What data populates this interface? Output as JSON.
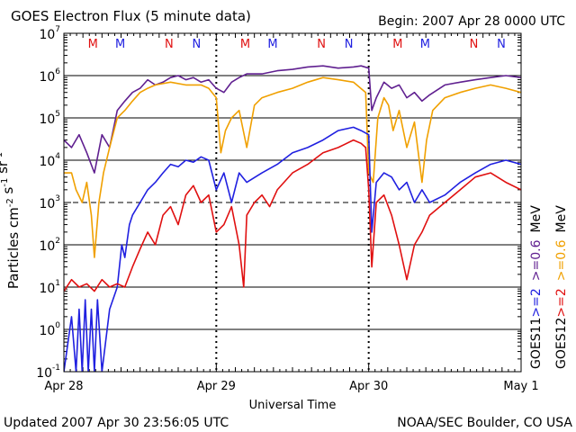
{
  "header": {
    "title": "GOES Electron Flux (5 minute data)",
    "begin": "Begin: 2007 Apr 28 0000 UTC"
  },
  "footer": {
    "updated": "Updated 2007 Apr 30 23:56:05 UTC",
    "source": "NOAA/SEC Boulder, CO USA"
  },
  "colors": {
    "goes11_2mev": "#2020e0",
    "goes11_06mev": "#602090",
    "goes12_2mev": "#e01010",
    "goes12_06mev": "#f0a000",
    "marker_m": "#e01010",
    "marker_n": "#2020e0"
  },
  "chart_data": {
    "type": "line",
    "title": "GOES Electron Flux (5 minute data)",
    "xlabel": "Universal Time",
    "ylabel": "Particles cm^-2 s^-1 sr^-1",
    "yscale": "log",
    "ylim": [
      0.1,
      10000000
    ],
    "xlim": [
      0,
      3
    ],
    "x_unit": "days since 2007 Apr 28 0000 UTC",
    "y_ticks": [
      {
        "base": "10",
        "exp": "7"
      },
      {
        "base": "10",
        "exp": "6"
      },
      {
        "base": "10",
        "exp": "5"
      },
      {
        "base": "10",
        "exp": "4"
      },
      {
        "base": "10",
        "exp": "3"
      },
      {
        "base": "10",
        "exp": "2"
      },
      {
        "base": "10",
        "exp": "1"
      },
      {
        "base": "10",
        "exp": "0"
      },
      {
        "base": "10",
        "exp": "-1"
      }
    ],
    "x_ticks": [
      {
        "label": "Apr 28",
        "x": 0
      },
      {
        "label": "Apr 29",
        "x": 1
      },
      {
        "label": "Apr 30",
        "x": 2
      },
      {
        "label": "May 1",
        "x": 3
      }
    ],
    "dashed_levels": [
      1000
    ],
    "day_boundaries": [
      1,
      2
    ],
    "markers": [
      {
        "label": "M",
        "x": 0.19,
        "color": "#e01010"
      },
      {
        "label": "M",
        "x": 0.37,
        "color": "#2020e0"
      },
      {
        "label": "N",
        "x": 0.69,
        "color": "#e01010"
      },
      {
        "label": "N",
        "x": 0.87,
        "color": "#2020e0"
      },
      {
        "label": "M",
        "x": 1.19,
        "color": "#e01010"
      },
      {
        "label": "M",
        "x": 1.37,
        "color": "#2020e0"
      },
      {
        "label": "N",
        "x": 1.69,
        "color": "#e01010"
      },
      {
        "label": "N",
        "x": 1.87,
        "color": "#2020e0"
      },
      {
        "label": "M",
        "x": 2.19,
        "color": "#e01010"
      },
      {
        "label": "M",
        "x": 2.37,
        "color": "#2020e0"
      },
      {
        "label": "N",
        "x": 2.69,
        "color": "#e01010"
      },
      {
        "label": "N",
        "x": 2.87,
        "color": "#2020e0"
      }
    ],
    "legend": {
      "position": "right",
      "goes11_label": "GOES11",
      "goes12_label": "GOES12",
      "goes11_items": [
        {
          "label": ">=2",
          "color": "#2020e0"
        },
        {
          "label": ">=0.6",
          "color": "#602090"
        },
        {
          "label": "MeV",
          "color": "#000000"
        }
      ],
      "goes12_items": [
        {
          "label": ">=2",
          "color": "#e01010"
        },
        {
          "label": ">=0.6",
          "color": "#f0a000"
        },
        {
          "label": "MeV",
          "color": "#000000"
        }
      ]
    },
    "series": [
      {
        "name": "GOES11 >=0.6 MeV",
        "color": "#602090",
        "x": [
          0,
          0.05,
          0.1,
          0.15,
          0.2,
          0.25,
          0.3,
          0.35,
          0.4,
          0.45,
          0.5,
          0.55,
          0.6,
          0.65,
          0.7,
          0.75,
          0.8,
          0.85,
          0.9,
          0.95,
          1.0,
          1.05,
          1.1,
          1.15,
          1.2,
          1.3,
          1.4,
          1.5,
          1.6,
          1.7,
          1.8,
          1.9,
          1.95,
          2.0,
          2.02,
          2.05,
          2.1,
          2.15,
          2.2,
          2.25,
          2.3,
          2.35,
          2.4,
          2.5,
          2.6,
          2.7,
          2.8,
          2.9,
          3.0
        ],
        "y": [
          30000,
          20000,
          40000,
          15000,
          5000,
          40000,
          20000,
          150000,
          250000,
          400000,
          500000,
          800000,
          600000,
          700000,
          900000,
          1000000,
          800000,
          900000,
          700000,
          800000,
          500000,
          400000,
          700000,
          900000,
          1100000,
          1100000,
          1300000,
          1400000,
          1600000,
          1700000,
          1500000,
          1600000,
          1700000,
          1500000,
          150000,
          300000,
          700000,
          500000,
          600000,
          300000,
          400000,
          250000,
          350000,
          600000,
          700000,
          800000,
          900000,
          1000000,
          900000
        ]
      },
      {
        "name": "GOES12 >=0.6 MeV",
        "color": "#f0a000",
        "x": [
          0,
          0.05,
          0.08,
          0.12,
          0.15,
          0.18,
          0.2,
          0.23,
          0.26,
          0.3,
          0.35,
          0.4,
          0.45,
          0.5,
          0.55,
          0.6,
          0.7,
          0.8,
          0.9,
          0.95,
          1.0,
          1.03,
          1.06,
          1.1,
          1.15,
          1.2,
          1.25,
          1.3,
          1.4,
          1.5,
          1.6,
          1.7,
          1.8,
          1.9,
          1.98,
          2.0,
          2.03,
          2.06,
          2.1,
          2.13,
          2.16,
          2.2,
          2.25,
          2.3,
          2.35,
          2.38,
          2.42,
          2.5,
          2.6,
          2.7,
          2.8,
          2.9,
          3.0
        ],
        "y": [
          5000,
          5000,
          2000,
          1000,
          3000,
          500,
          50,
          1000,
          5000,
          20000,
          100000,
          150000,
          250000,
          400000,
          500000,
          600000,
          700000,
          600000,
          600000,
          500000,
          300000,
          15000,
          50000,
          100000,
          150000,
          20000,
          200000,
          300000,
          400000,
          500000,
          700000,
          900000,
          800000,
          700000,
          400000,
          5000,
          3000,
          100000,
          300000,
          200000,
          50000,
          150000,
          20000,
          80000,
          3000,
          30000,
          150000,
          300000,
          400000,
          500000,
          600000,
          500000,
          400000
        ]
      },
      {
        "name": "GOES11 >=2 MeV",
        "color": "#2020e0",
        "x": [
          0,
          0.05,
          0.08,
          0.1,
          0.12,
          0.14,
          0.16,
          0.18,
          0.2,
          0.22,
          0.25,
          0.3,
          0.35,
          0.38,
          0.4,
          0.43,
          0.45,
          0.5,
          0.55,
          0.6,
          0.65,
          0.7,
          0.75,
          0.8,
          0.85,
          0.9,
          0.95,
          1.0,
          1.05,
          1.1,
          1.15,
          1.2,
          1.3,
          1.4,
          1.5,
          1.6,
          1.7,
          1.8,
          1.9,
          1.95,
          2.0,
          2.02,
          2.05,
          2.1,
          2.15,
          2.2,
          2.25,
          2.3,
          2.35,
          2.4,
          2.5,
          2.6,
          2.7,
          2.8,
          2.9,
          3.0
        ],
        "y": [
          0.1,
          2,
          0.1,
          3,
          0.1,
          5,
          0.1,
          3,
          0.1,
          5,
          0.1,
          3,
          10,
          100,
          50,
          300,
          500,
          1000,
          2000,
          3000,
          5000,
          8000,
          7000,
          10000,
          9000,
          12000,
          10000,
          2000,
          5000,
          1000,
          5000,
          3000,
          5000,
          8000,
          15000,
          20000,
          30000,
          50000,
          60000,
          50000,
          40000,
          200,
          3000,
          5000,
          4000,
          2000,
          3000,
          1000,
          2000,
          1000,
          1500,
          3000,
          5000,
          8000,
          10000,
          8000
        ]
      },
      {
        "name": "GOES12 >=2 MeV",
        "color": "#e01010",
        "x": [
          0,
          0.05,
          0.1,
          0.15,
          0.2,
          0.25,
          0.3,
          0.35,
          0.4,
          0.45,
          0.5,
          0.55,
          0.6,
          0.65,
          0.7,
          0.75,
          0.8,
          0.85,
          0.9,
          0.95,
          1.0,
          1.05,
          1.1,
          1.15,
          1.18,
          1.2,
          1.25,
          1.3,
          1.35,
          1.4,
          1.5,
          1.6,
          1.7,
          1.8,
          1.9,
          1.95,
          1.98,
          2.0,
          2.02,
          2.05,
          2.1,
          2.15,
          2.2,
          2.25,
          2.3,
          2.35,
          2.4,
          2.5,
          2.6,
          2.7,
          2.8,
          2.9,
          3.0
        ],
        "y": [
          8,
          15,
          10,
          12,
          8,
          15,
          10,
          12,
          10,
          30,
          80,
          200,
          100,
          500,
          800,
          300,
          1500,
          2500,
          1000,
          1500,
          200,
          300,
          800,
          100,
          10,
          500,
          1000,
          1500,
          800,
          2000,
          5000,
          8000,
          15000,
          20000,
          30000,
          25000,
          20000,
          2000,
          30,
          1000,
          1500,
          500,
          100,
          15,
          100,
          200,
          500,
          1000,
          2000,
          4000,
          5000,
          3000,
          2000
        ]
      }
    ]
  }
}
